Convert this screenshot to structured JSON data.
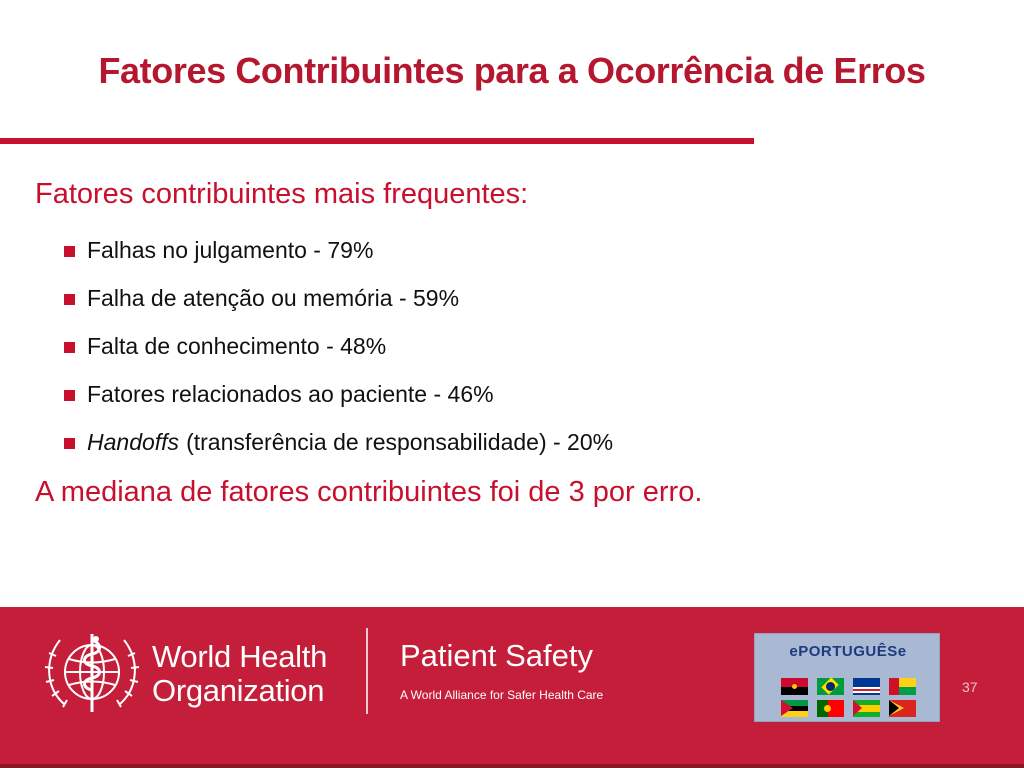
{
  "slide": {
    "title": "Fatores Contribuintes para a Ocorrência de Erros",
    "heading": "Fatores contribuintes mais frequentes:",
    "bullets": [
      {
        "em": "",
        "text": "Falhas no julgamento - 79%"
      },
      {
        "em": "",
        "text": "Falha de atenção ou memória - 59%"
      },
      {
        "em": "",
        "text": "Falta de conhecimento - 48%"
      },
      {
        "em": "",
        "text": "Fatores relacionados ao paciente - 46%"
      },
      {
        "em": "Handoffs",
        "text": "(transferência de responsabilidade) - 20%"
      }
    ],
    "summary": "A mediana de fatores contribuintes foi de 3 por erro.",
    "page_number": "37"
  },
  "footer": {
    "org_line1": "World Health",
    "org_line2": "Organization",
    "program_title": "Patient Safety",
    "program_subtitle": "A World Alliance for Safer Health Care",
    "badge_text": "ePORTUGUÊSe",
    "flags": [
      "angola-flag",
      "brazil-flag",
      "cape-verde-flag",
      "guinea-bissau-flag",
      "mozambique-flag",
      "portugal-flag",
      "sao-tome-flag",
      "east-timor-flag"
    ]
  },
  "colors": {
    "title_red": "#b5172f",
    "accent_red": "#c8102e",
    "footer_red": "#c41e3a",
    "badge_blue": "#a9b9d4"
  }
}
